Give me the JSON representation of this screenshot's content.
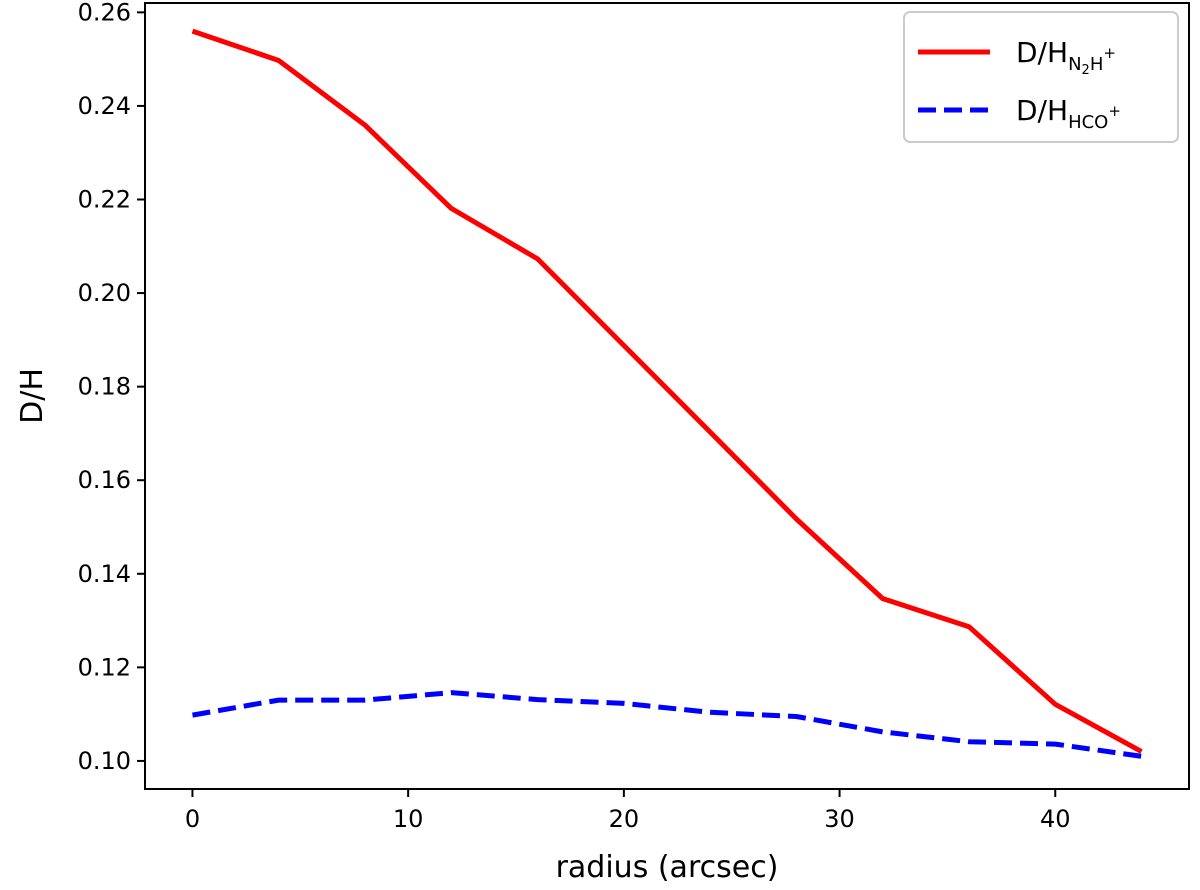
{
  "chart_data": {
    "type": "line",
    "xlabel": "radius (arcsec)",
    "ylabel": "D/H",
    "xlim": [
      -2.2,
      46.2
    ],
    "ylim": [
      0.094,
      0.262
    ],
    "xticks": [
      0,
      10,
      20,
      30,
      40
    ],
    "xtick_labels": [
      "0",
      "10",
      "20",
      "30",
      "40"
    ],
    "yticks": [
      0.1,
      0.12,
      0.14,
      0.16,
      0.18,
      0.2,
      0.22,
      0.24,
      0.26
    ],
    "ytick_labels": [
      "0.10",
      "0.12",
      "0.14",
      "0.16",
      "0.18",
      "0.20",
      "0.22",
      "0.24",
      "0.26"
    ],
    "grid": false,
    "legend_position": "top-right",
    "x": [
      0,
      4,
      8,
      12,
      16,
      20,
      24,
      28,
      32,
      36,
      40,
      44
    ],
    "series": [
      {
        "name": "D/H_N2H+",
        "legend": {
          "main": "D/H",
          "sub_parts": [
            {
              "t": "N",
              "sub": false
            },
            {
              "t": "2",
              "sub": true
            },
            {
              "t": "H",
              "sub": false
            }
          ],
          "sup": "+"
        },
        "color": "#ff0000",
        "style": "solid",
        "values": [
          0.256,
          0.2497,
          0.2359,
          0.2181,
          0.2073,
          0.1888,
          0.1703,
          0.1517,
          0.1347,
          0.1287,
          0.1121,
          0.102
        ]
      },
      {
        "name": "D/H_HCO+",
        "legend": {
          "main": "D/H",
          "sub_parts": [
            {
              "t": "HCO",
              "sub": false
            }
          ],
          "sup": "+"
        },
        "color": "#0000ff",
        "style": "dashed",
        "values": [
          0.1098,
          0.113,
          0.113,
          0.1146,
          0.1131,
          0.1123,
          0.1104,
          0.1095,
          0.1062,
          0.1041,
          0.1036,
          0.101
        ]
      }
    ]
  }
}
